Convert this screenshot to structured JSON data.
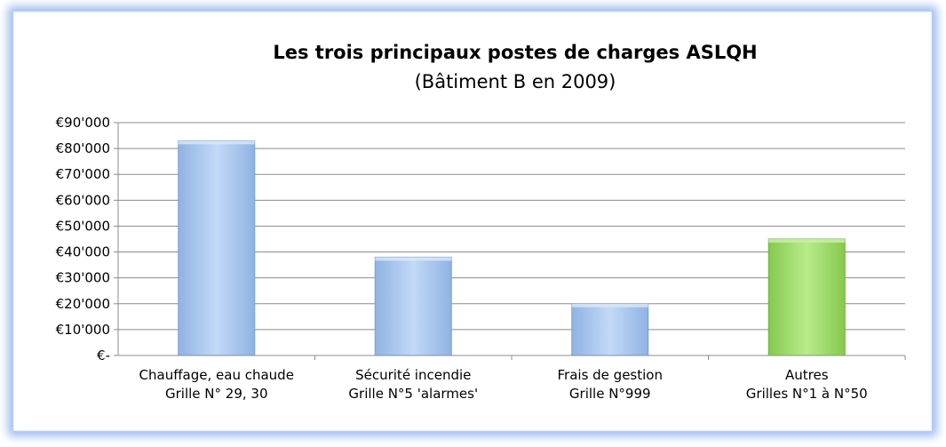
{
  "chart_data": {
    "type": "bar",
    "title": "Les trois principaux postes de charges ASLQH",
    "subtitle": "(Bâtiment B en 2009)",
    "categories": [
      [
        "Chauffage, eau chaude",
        "Grille N° 29, 30"
      ],
      [
        "Sécurité incendie",
        "Grille N°5 'alarmes'"
      ],
      [
        "Frais de gestion",
        "Grille N°999"
      ],
      [
        "Autres",
        "Grilles N°1 à N°50"
      ]
    ],
    "values": [
      83000,
      38000,
      20000,
      45000
    ],
    "bar_colors": [
      "#a9c8f2",
      "#a9c8f2",
      "#a9c8f2",
      "#a3df6f"
    ],
    "ylim": [
      0,
      90000
    ],
    "yticks": [
      0,
      10000,
      20000,
      30000,
      40000,
      50000,
      60000,
      70000,
      80000,
      90000
    ],
    "ytick_labels": [
      "€-",
      "€10'000",
      "€20'000",
      "€30'000",
      "€40'000",
      "€50'000",
      "€60'000",
      "€70'000",
      "€80'000",
      "€90'000"
    ],
    "grid": true,
    "legend": "none",
    "xlabel": "",
    "ylabel": ""
  }
}
